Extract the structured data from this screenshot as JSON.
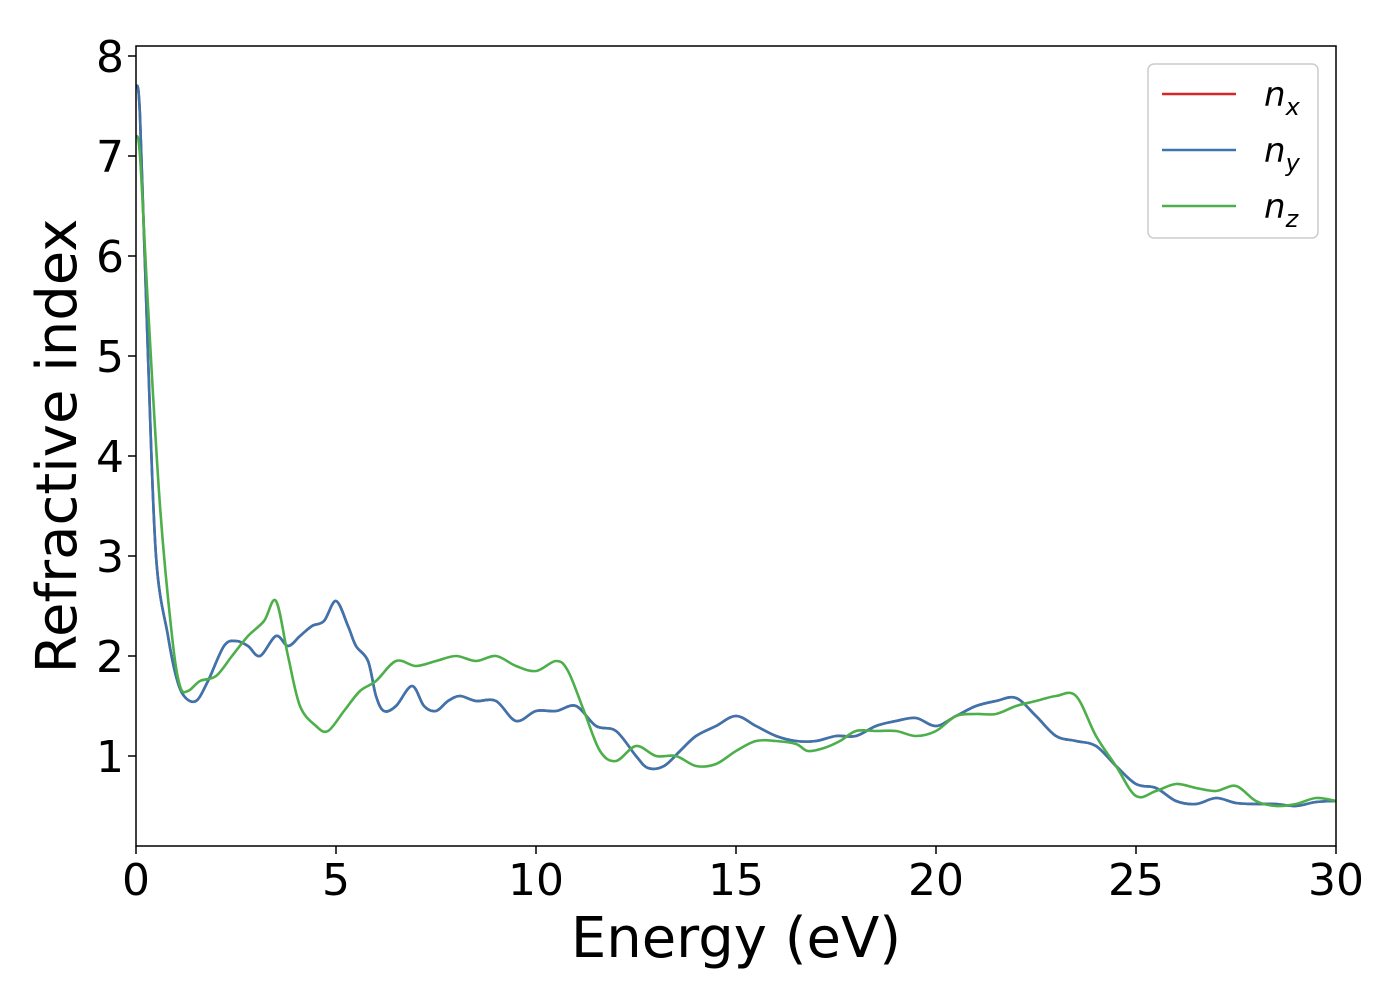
{
  "chart_data": {
    "type": "line",
    "title": "",
    "xlabel": "Energy (eV)",
    "ylabel": "Refractive index",
    "xlim": [
      0,
      30
    ],
    "ylim": [
      0.1,
      8.1
    ],
    "xticks": [
      0,
      5,
      10,
      15,
      20,
      25,
      30
    ],
    "yticks": [
      1,
      2,
      3,
      4,
      5,
      6,
      7,
      8
    ],
    "grid": false,
    "legend_placement": "top-right",
    "series": [
      {
        "name": "n",
        "subscript": "x",
        "color": "#d62728",
        "points": [
          [
            0,
            7.7
          ],
          [
            0.1,
            7.4
          ],
          [
            0.3,
            5.0
          ],
          [
            0.5,
            3.0
          ],
          [
            0.8,
            2.2
          ],
          [
            1.0,
            1.8
          ],
          [
            1.2,
            1.6
          ],
          [
            1.5,
            1.55
          ],
          [
            1.8,
            1.75
          ],
          [
            2.2,
            2.1
          ],
          [
            2.5,
            2.15
          ],
          [
            2.8,
            2.1
          ],
          [
            3.1,
            2.0
          ],
          [
            3.5,
            2.2
          ],
          [
            3.8,
            2.1
          ],
          [
            4.1,
            2.2
          ],
          [
            4.4,
            2.3
          ],
          [
            4.7,
            2.35
          ],
          [
            5.0,
            2.55
          ],
          [
            5.3,
            2.3
          ],
          [
            5.5,
            2.1
          ],
          [
            5.8,
            1.95
          ],
          [
            6.0,
            1.6
          ],
          [
            6.2,
            1.45
          ],
          [
            6.5,
            1.5
          ],
          [
            6.9,
            1.7
          ],
          [
            7.2,
            1.5
          ],
          [
            7.5,
            1.45
          ],
          [
            7.8,
            1.55
          ],
          [
            8.1,
            1.6
          ],
          [
            8.5,
            1.55
          ],
          [
            9.0,
            1.55
          ],
          [
            9.5,
            1.35
          ],
          [
            10.0,
            1.45
          ],
          [
            10.5,
            1.45
          ],
          [
            11.0,
            1.5
          ],
          [
            11.5,
            1.3
          ],
          [
            12.0,
            1.25
          ],
          [
            12.5,
            1.0
          ],
          [
            12.8,
            0.88
          ],
          [
            13.2,
            0.9
          ],
          [
            13.6,
            1.05
          ],
          [
            14.0,
            1.2
          ],
          [
            14.5,
            1.3
          ],
          [
            15.0,
            1.4
          ],
          [
            15.5,
            1.3
          ],
          [
            16.0,
            1.2
          ],
          [
            16.5,
            1.15
          ],
          [
            17.0,
            1.15
          ],
          [
            17.5,
            1.2
          ],
          [
            18.0,
            1.2
          ],
          [
            18.5,
            1.3
          ],
          [
            19.0,
            1.35
          ],
          [
            19.5,
            1.38
          ],
          [
            20.0,
            1.3
          ],
          [
            20.5,
            1.4
          ],
          [
            21.0,
            1.5
          ],
          [
            21.5,
            1.55
          ],
          [
            22.0,
            1.58
          ],
          [
            22.5,
            1.4
          ],
          [
            23.0,
            1.2
          ],
          [
            23.5,
            1.15
          ],
          [
            24.0,
            1.1
          ],
          [
            24.5,
            0.9
          ],
          [
            25.0,
            0.72
          ],
          [
            25.5,
            0.68
          ],
          [
            26.0,
            0.55
          ],
          [
            26.5,
            0.52
          ],
          [
            27.0,
            0.58
          ],
          [
            27.5,
            0.53
          ],
          [
            28.0,
            0.52
          ],
          [
            28.5,
            0.52
          ],
          [
            29.0,
            0.5
          ],
          [
            29.5,
            0.54
          ],
          [
            30.0,
            0.55
          ]
        ]
      },
      {
        "name": "n",
        "subscript": "y",
        "color": "#3a75af",
        "points": [
          [
            0,
            7.7
          ],
          [
            0.1,
            7.4
          ],
          [
            0.3,
            5.0
          ],
          [
            0.5,
            3.0
          ],
          [
            0.8,
            2.2
          ],
          [
            1.0,
            1.8
          ],
          [
            1.2,
            1.6
          ],
          [
            1.5,
            1.55
          ],
          [
            1.8,
            1.75
          ],
          [
            2.2,
            2.1
          ],
          [
            2.5,
            2.15
          ],
          [
            2.8,
            2.1
          ],
          [
            3.1,
            2.0
          ],
          [
            3.5,
            2.2
          ],
          [
            3.8,
            2.1
          ],
          [
            4.1,
            2.2
          ],
          [
            4.4,
            2.3
          ],
          [
            4.7,
            2.35
          ],
          [
            5.0,
            2.55
          ],
          [
            5.3,
            2.3
          ],
          [
            5.5,
            2.1
          ],
          [
            5.8,
            1.95
          ],
          [
            6.0,
            1.6
          ],
          [
            6.2,
            1.45
          ],
          [
            6.5,
            1.5
          ],
          [
            6.9,
            1.7
          ],
          [
            7.2,
            1.5
          ],
          [
            7.5,
            1.45
          ],
          [
            7.8,
            1.55
          ],
          [
            8.1,
            1.6
          ],
          [
            8.5,
            1.55
          ],
          [
            9.0,
            1.55
          ],
          [
            9.5,
            1.35
          ],
          [
            10.0,
            1.45
          ],
          [
            10.5,
            1.45
          ],
          [
            11.0,
            1.5
          ],
          [
            11.5,
            1.3
          ],
          [
            12.0,
            1.25
          ],
          [
            12.5,
            1.0
          ],
          [
            12.8,
            0.88
          ],
          [
            13.2,
            0.9
          ],
          [
            13.6,
            1.05
          ],
          [
            14.0,
            1.2
          ],
          [
            14.5,
            1.3
          ],
          [
            15.0,
            1.4
          ],
          [
            15.5,
            1.3
          ],
          [
            16.0,
            1.2
          ],
          [
            16.5,
            1.15
          ],
          [
            17.0,
            1.15
          ],
          [
            17.5,
            1.2
          ],
          [
            18.0,
            1.2
          ],
          [
            18.5,
            1.3
          ],
          [
            19.0,
            1.35
          ],
          [
            19.5,
            1.38
          ],
          [
            20.0,
            1.3
          ],
          [
            20.5,
            1.4
          ],
          [
            21.0,
            1.5
          ],
          [
            21.5,
            1.55
          ],
          [
            22.0,
            1.58
          ],
          [
            22.5,
            1.4
          ],
          [
            23.0,
            1.2
          ],
          [
            23.5,
            1.15
          ],
          [
            24.0,
            1.1
          ],
          [
            24.5,
            0.9
          ],
          [
            25.0,
            0.72
          ],
          [
            25.5,
            0.68
          ],
          [
            26.0,
            0.55
          ],
          [
            26.5,
            0.52
          ],
          [
            27.0,
            0.58
          ],
          [
            27.5,
            0.53
          ],
          [
            28.0,
            0.52
          ],
          [
            28.5,
            0.52
          ],
          [
            29.0,
            0.5
          ],
          [
            29.5,
            0.54
          ],
          [
            30.0,
            0.55
          ]
        ]
      },
      {
        "name": "n",
        "subscript": "z",
        "color": "#4daf4a",
        "points": [
          [
            0,
            7.2
          ],
          [
            0.1,
            7.0
          ],
          [
            0.3,
            5.5
          ],
          [
            0.6,
            3.5
          ],
          [
            0.9,
            2.2
          ],
          [
            1.1,
            1.7
          ],
          [
            1.3,
            1.65
          ],
          [
            1.6,
            1.75
          ],
          [
            2.0,
            1.8
          ],
          [
            2.4,
            2.0
          ],
          [
            2.8,
            2.2
          ],
          [
            3.2,
            2.35
          ],
          [
            3.5,
            2.55
          ],
          [
            3.8,
            2.0
          ],
          [
            4.1,
            1.5
          ],
          [
            4.5,
            1.3
          ],
          [
            4.8,
            1.25
          ],
          [
            5.2,
            1.45
          ],
          [
            5.6,
            1.65
          ],
          [
            6.0,
            1.75
          ],
          [
            6.5,
            1.95
          ],
          [
            7.0,
            1.9
          ],
          [
            7.5,
            1.95
          ],
          [
            8.0,
            2.0
          ],
          [
            8.5,
            1.95
          ],
          [
            9.0,
            2.0
          ],
          [
            9.5,
            1.9
          ],
          [
            10.0,
            1.85
          ],
          [
            10.5,
            1.95
          ],
          [
            10.8,
            1.85
          ],
          [
            11.2,
            1.45
          ],
          [
            11.6,
            1.05
          ],
          [
            12.0,
            0.95
          ],
          [
            12.5,
            1.1
          ],
          [
            13.0,
            1.0
          ],
          [
            13.5,
            1.0
          ],
          [
            14.0,
            0.9
          ],
          [
            14.5,
            0.92
          ],
          [
            15.0,
            1.05
          ],
          [
            15.5,
            1.15
          ],
          [
            16.0,
            1.15
          ],
          [
            16.5,
            1.12
          ],
          [
            16.8,
            1.05
          ],
          [
            17.2,
            1.08
          ],
          [
            17.6,
            1.15
          ],
          [
            18.0,
            1.25
          ],
          [
            18.5,
            1.25
          ],
          [
            19.0,
            1.25
          ],
          [
            19.5,
            1.2
          ],
          [
            20.0,
            1.25
          ],
          [
            20.5,
            1.4
          ],
          [
            21.0,
            1.42
          ],
          [
            21.5,
            1.42
          ],
          [
            22.0,
            1.5
          ],
          [
            22.5,
            1.55
          ],
          [
            23.0,
            1.6
          ],
          [
            23.5,
            1.6
          ],
          [
            24.0,
            1.2
          ],
          [
            24.5,
            0.9
          ],
          [
            25.0,
            0.6
          ],
          [
            25.5,
            0.65
          ],
          [
            26.0,
            0.72
          ],
          [
            26.5,
            0.68
          ],
          [
            27.0,
            0.65
          ],
          [
            27.5,
            0.7
          ],
          [
            28.0,
            0.55
          ],
          [
            28.5,
            0.5
          ],
          [
            29.0,
            0.52
          ],
          [
            29.5,
            0.58
          ],
          [
            30.0,
            0.55
          ]
        ]
      }
    ]
  }
}
